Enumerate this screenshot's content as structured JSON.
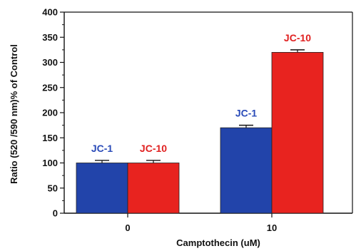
{
  "chart_data": {
    "type": "bar",
    "categories": [
      "0",
      "10"
    ],
    "series": [
      {
        "values": [
          100,
          170
        ],
        "errors": [
          5,
          5
        ],
        "color": "#2244aa",
        "labels": [
          "JC-1",
          "JC-1"
        ],
        "label_color": "#2a4bb8"
      },
      {
        "values": [
          100,
          320
        ],
        "errors": [
          5,
          5
        ],
        "color": "#e8231f",
        "labels": [
          "JC-10",
          "JC-10"
        ],
        "label_color": "#e02020"
      }
    ],
    "xlabel": "Camptothecin (uM)",
    "ylabel": "Ratio (520 /590 nm)% of Control",
    "ylim": [
      0,
      400
    ],
    "yticks": [
      0,
      50,
      100,
      150,
      200,
      250,
      300,
      350,
      400
    ],
    "ytick_labels": [
      "0",
      "50",
      "100",
      "150",
      "200",
      "250",
      "300",
      "350",
      "400"
    ],
    "grid": false,
    "legend": "none"
  }
}
